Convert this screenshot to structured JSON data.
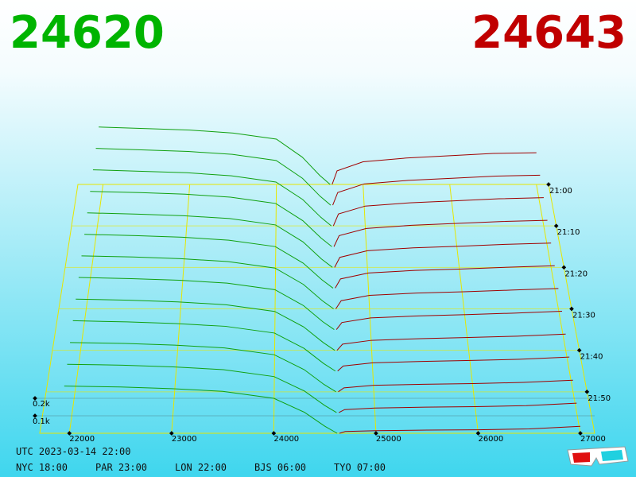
{
  "chart_data": {
    "type": "depth3d",
    "bid_label": "24620",
    "ask_label": "24643",
    "bid_color": "#10a010",
    "ask_color": "#a00000",
    "frame_color": "#e6e600",
    "xlim": [
      21710,
      27140
    ],
    "xticks": [
      22000,
      23000,
      24000,
      25000,
      26000,
      27000
    ],
    "tlim": [
      1260,
      1320
    ],
    "tticks": [
      {
        "value": 1260,
        "label": "21:00"
      },
      {
        "value": 1270,
        "label": "21:10"
      },
      {
        "value": 1280,
        "label": "21:20"
      },
      {
        "value": 1290,
        "label": "21:30"
      },
      {
        "value": 1300,
        "label": "21:40"
      },
      {
        "value": 1310,
        "label": "21:50"
      }
    ],
    "zticks": [
      {
        "value": 100,
        "label": "0.1k"
      },
      {
        "value": 200,
        "label": "0.2k"
      }
    ],
    "bid_prices": [
      21950,
      22500,
      23000,
      23500,
      24000,
      24300,
      24500,
      24620
    ],
    "ask_prices": [
      24643,
      24700,
      25000,
      25500,
      26000,
      26500,
      27000
    ],
    "slices": [
      {
        "time": 1260,
        "bids": [
          380,
          370,
          360,
          340,
          300,
          180,
          60,
          0
        ],
        "asks": [
          0,
          90,
          150,
          175,
          190,
          205,
          210
        ]
      },
      {
        "time": 1265,
        "bids": [
          371,
          361,
          351,
          332,
          292,
          175,
          58,
          0
        ],
        "asks": [
          0,
          83,
          139,
          162,
          176,
          190,
          196
        ]
      },
      {
        "time": 1270,
        "bids": [
          362,
          352,
          343,
          323,
          283,
          170,
          57,
          0
        ],
        "asks": [
          0,
          77,
          128,
          149,
          162,
          175,
          182
        ]
      },
      {
        "time": 1275,
        "bids": [
          352,
          344,
          334,
          315,
          275,
          165,
          55,
          0
        ],
        "asks": [
          0,
          70,
          116,
          136,
          148,
          160,
          168
        ]
      },
      {
        "time": 1280,
        "bids": [
          343,
          335,
          325,
          307,
          267,
          160,
          53,
          0
        ],
        "asks": [
          0,
          63,
          105,
          123,
          133,
          145,
          153
        ]
      },
      {
        "time": 1285,
        "bids": [
          334,
          326,
          316,
          298,
          258,
          155,
          52,
          0
        ],
        "asks": [
          0,
          57,
          94,
          110,
          119,
          130,
          139
        ]
      },
      {
        "time": 1290,
        "bids": [
          325,
          318,
          308,
          290,
          250,
          150,
          50,
          0
        ],
        "asks": [
          0,
          50,
          83,
          97,
          105,
          115,
          125
        ]
      },
      {
        "time": 1295,
        "bids": [
          316,
          309,
          299,
          282,
          242,
          145,
          48,
          0
        ],
        "asks": [
          0,
          43,
          71,
          83,
          91,
          100,
          111
        ]
      },
      {
        "time": 1300,
        "bids": [
          307,
          300,
          290,
          273,
          233,
          140,
          47,
          0
        ],
        "asks": [
          0,
          37,
          60,
          70,
          77,
          85,
          97
        ]
      },
      {
        "time": 1305,
        "bids": [
          298,
          291,
          281,
          265,
          225,
          135,
          45,
          0
        ],
        "asks": [
          0,
          30,
          49,
          57,
          63,
          70,
          83
        ]
      },
      {
        "time": 1310,
        "bids": [
          288,
          283,
          273,
          257,
          217,
          130,
          43,
          0
        ],
        "asks": [
          0,
          23,
          38,
          44,
          48,
          55,
          68
        ]
      },
      {
        "time": 1315,
        "bids": [
          279,
          274,
          264,
          248,
          208,
          125,
          42,
          0
        ],
        "asks": [
          0,
          17,
          26,
          31,
          34,
          40,
          54
        ]
      },
      {
        "time": 1320,
        "bids": [
          270,
          265,
          255,
          240,
          200,
          120,
          40,
          0
        ],
        "asks": [
          0,
          10,
          15,
          18,
          20,
          25,
          40
        ]
      }
    ]
  },
  "footer": {
    "utc": "UTC 2023-03-14 22:00",
    "clocks": [
      "NYC 18:00",
      "PAR 23:00",
      "LON 22:00",
      "BJS 06:00",
      "TYO 07:00"
    ]
  }
}
